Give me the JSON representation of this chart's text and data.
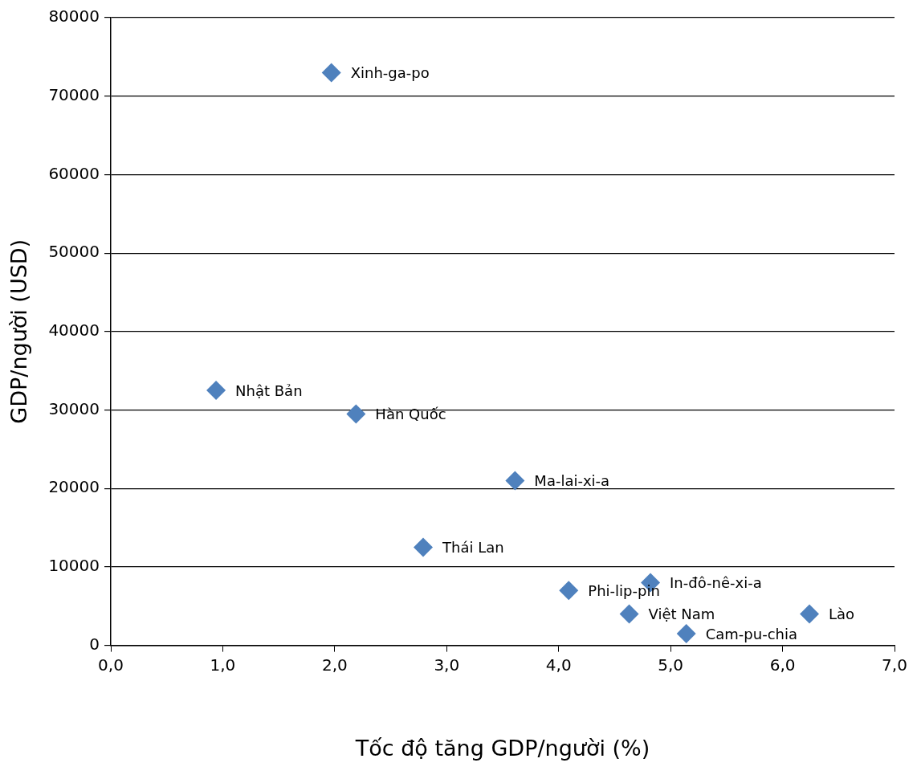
{
  "chart_data": {
    "type": "scatter",
    "xlabel": "Tốc độ tăng GDP/người (%)",
    "ylabel": "GDP/người (USD)",
    "x": [
      1.97,
      0.94,
      2.19,
      3.61,
      2.79,
      4.09,
      4.82,
      4.63,
      6.24,
      5.14
    ],
    "series": [
      {
        "color": "#4f81bd",
        "values": [
          73000,
          32500,
          29500,
          21000,
          12500,
          7000,
          8000,
          4000,
          4000,
          1500
        ]
      }
    ],
    "annotations": [
      {
        "text": "Xinh-ga-po",
        "x": 1.97,
        "y": 73000
      },
      {
        "text": "Nhật Bản",
        "x": 0.94,
        "y": 32500
      },
      {
        "text": "Hàn Quốc",
        "x": 2.19,
        "y": 29500
      },
      {
        "text": "Ma-lai-xi-a",
        "x": 3.61,
        "y": 21000
      },
      {
        "text": "Thái Lan",
        "x": 2.79,
        "y": 12500
      },
      {
        "text": "Phi-lip-pin",
        "x": 4.09,
        "y": 7000
      },
      {
        "text": "In-đô-nê-xi-a",
        "x": 4.82,
        "y": 8000
      },
      {
        "text": "Việt Nam",
        "x": 4.63,
        "y": 4000
      },
      {
        "text": "Lào",
        "x": 6.24,
        "y": 4000
      },
      {
        "text": "Cam-pu-chia",
        "x": 5.14,
        "y": 1500
      }
    ],
    "xlim": [
      0,
      7
    ],
    "xticks": [
      {
        "value": 0,
        "label": "0,0"
      },
      {
        "value": 1,
        "label": "1,0"
      },
      {
        "value": 2,
        "label": "2,0"
      },
      {
        "value": 3,
        "label": "3,0"
      },
      {
        "value": 4,
        "label": "4,0"
      },
      {
        "value": 5,
        "label": "5,0"
      },
      {
        "value": 6,
        "label": "6,0"
      },
      {
        "value": 7,
        "label": "7,0"
      }
    ],
    "ylim": [
      0,
      80000
    ],
    "yticks": [
      0,
      10000,
      20000,
      30000,
      40000,
      50000,
      60000,
      70000,
      80000
    ],
    "grid": "y",
    "legend": false,
    "marker": "diamond"
  }
}
